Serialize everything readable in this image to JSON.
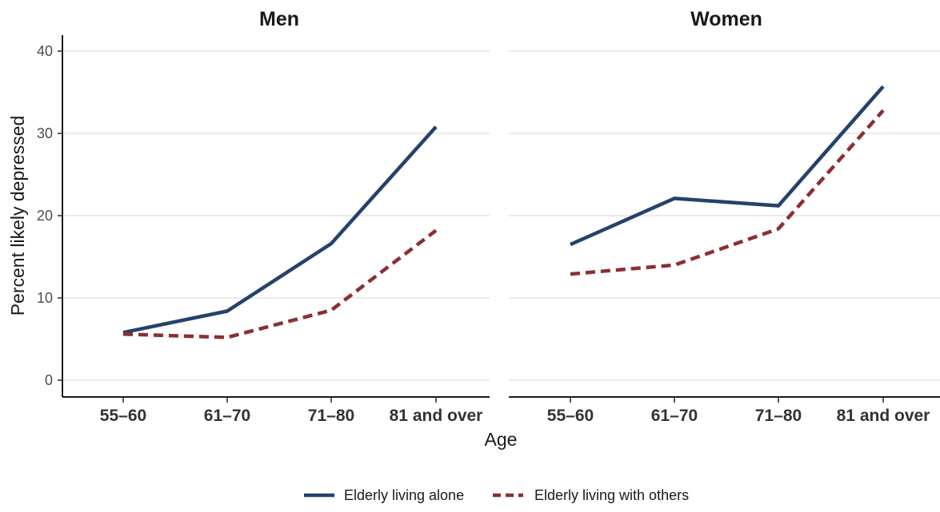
{
  "chart_data": {
    "type": "line",
    "facets": [
      "Men",
      "Women"
    ],
    "categories": [
      "55–60",
      "61–70",
      "71–80",
      "81 and over"
    ],
    "xlabel": "Age",
    "ylabel": "Percent likely depressed",
    "ylim": [
      0,
      40
    ],
    "yticks": [
      "0",
      "10",
      "20",
      "30",
      "40"
    ],
    "grid": true,
    "legend_position": "bottom",
    "series": [
      {
        "name": "Elderly living alone",
        "color": "#24426b",
        "dash": "solid",
        "values": {
          "Men": [
            5.8,
            8.4,
            16.6,
            30.8
          ],
          "Women": [
            16.5,
            22.1,
            21.2,
            35.7
          ]
        }
      },
      {
        "name": "Elderly living with others",
        "color": "#8b2f32",
        "dash": "dashed",
        "values": {
          "Men": [
            5.6,
            5.2,
            8.5,
            18.2
          ],
          "Women": [
            12.9,
            14.0,
            18.4,
            32.8
          ]
        }
      }
    ]
  }
}
